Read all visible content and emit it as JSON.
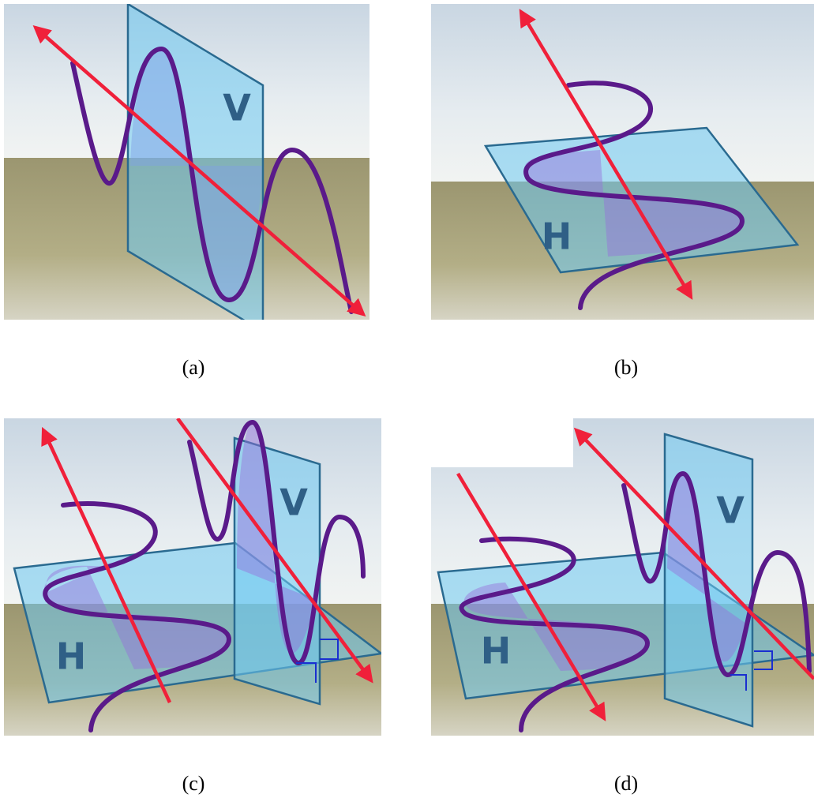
{
  "panels": [
    {
      "caption": "(a)",
      "labels": [
        "V"
      ]
    },
    {
      "caption": "(b)",
      "labels": [
        "H"
      ]
    },
    {
      "caption": "(c)",
      "labels": [
        "H",
        "V"
      ]
    },
    {
      "caption": "(d)",
      "labels": [
        "H",
        "V"
      ]
    }
  ]
}
